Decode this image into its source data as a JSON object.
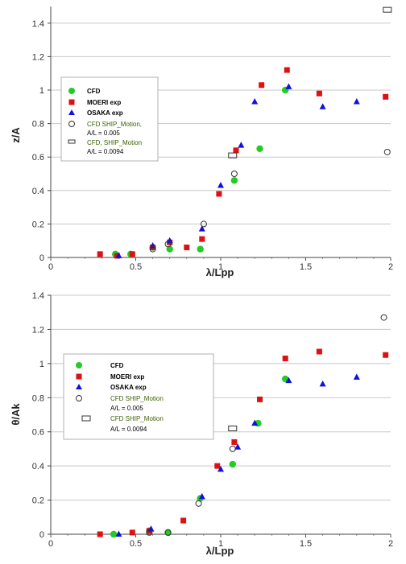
{
  "chart_data": [
    {
      "type": "scatter",
      "title": "",
      "xlabel": "λ/Lpp",
      "ylabel": "z/A",
      "xlim": [
        0,
        2
      ],
      "ylim": [
        0,
        1.5
      ],
      "xticks": [
        "0",
        "0.5",
        "1",
        "1.5",
        "2"
      ],
      "yticks": [
        "0",
        "0.2",
        "0.4",
        "0.6",
        "0.8",
        "1",
        "1.2",
        "1.4"
      ],
      "grid": "horizontal",
      "legend_position": "upper-left",
      "series": [
        {
          "name": "CFD",
          "marker": "filled-circle",
          "color": "#22cc22",
          "x": [
            0.38,
            0.47,
            0.6,
            0.7,
            0.88,
            1.08,
            1.23,
            1.38
          ],
          "y": [
            0.02,
            0.02,
            0.06,
            0.05,
            0.05,
            0.46,
            0.65,
            1.0
          ]
        },
        {
          "name": "MOERI exp",
          "marker": "filled-square",
          "color": "#dd1111",
          "x": [
            0.29,
            0.39,
            0.48,
            0.6,
            0.7,
            0.8,
            0.89,
            0.99,
            1.09,
            1.24,
            1.39,
            1.58,
            1.97
          ],
          "y": [
            0.02,
            0.01,
            0.02,
            0.06,
            0.09,
            0.06,
            0.11,
            0.38,
            0.64,
            1.03,
            1.12,
            0.98,
            0.96
          ]
        },
        {
          "name": "OSAKA exp",
          "marker": "filled-triangle",
          "color": "#1111dd",
          "x": [
            0.4,
            0.6,
            0.7,
            0.89,
            1.0,
            1.12,
            1.2,
            1.4,
            1.6,
            1.8
          ],
          "y": [
            0.01,
            0.07,
            0.1,
            0.17,
            0.43,
            0.67,
            0.93,
            1.02,
            0.9,
            0.93
          ]
        },
        {
          "name": "CFD SHIP_Motion, A/L = 0.005",
          "marker": "open-circle",
          "color": "#333333",
          "x": [
            0.6,
            0.69,
            0.9,
            1.08,
            1.98
          ],
          "y": [
            0.05,
            0.08,
            0.2,
            0.5,
            0.63
          ]
        },
        {
          "name": "CFD, SHIP_Motion A/L = 0.0094",
          "marker": "open-rect",
          "color": "#333333",
          "x": [
            1.07,
            1.98
          ],
          "y": [
            0.61,
            1.48
          ]
        }
      ],
      "legend": {
        "cfd": "CFD",
        "moeri": "MOERI exp",
        "osaka": "OSAKA exp",
        "ship1_line1": "CFD SHIP_Motion,",
        "ship1_line2": "A/L = 0.005",
        "ship2_line1": "CFD, SHIP_Motion",
        "ship2_line2": "A/L = 0.0094"
      }
    },
    {
      "type": "scatter",
      "title": "",
      "xlabel": "λ/Lpp",
      "ylabel": "θ/Ak",
      "xlim": [
        0,
        2
      ],
      "ylim": [
        0,
        1.4
      ],
      "xticks": [
        "0",
        "0.5",
        "1",
        "1.5",
        "2"
      ],
      "yticks": [
        "0",
        "0.2",
        "0.4",
        "0.6",
        "0.8",
        "1",
        "1.2",
        "1.4"
      ],
      "grid": "horizontal",
      "legend_position": "upper-left",
      "series": [
        {
          "name": "CFD",
          "marker": "filled-circle",
          "color": "#22cc22",
          "x": [
            0.37,
            0.58,
            0.69,
            0.88,
            1.07,
            1.22,
            1.38
          ],
          "y": [
            0.0,
            0.02,
            0.01,
            0.21,
            0.41,
            0.65,
            0.91
          ]
        },
        {
          "name": "MOERI exp",
          "marker": "filled-square",
          "color": "#dd1111",
          "x": [
            0.29,
            0.48,
            0.58,
            0.78,
            0.98,
            1.08,
            1.23,
            1.38,
            1.58,
            1.97
          ],
          "y": [
            0.0,
            0.01,
            0.02,
            0.08,
            0.4,
            0.54,
            0.79,
            1.03,
            1.07,
            1.05
          ]
        },
        {
          "name": "OSAKA exp",
          "marker": "filled-triangle",
          "color": "#1111dd",
          "x": [
            0.4,
            0.59,
            0.89,
            1.0,
            1.1,
            1.2,
            1.4,
            1.6,
            1.8
          ],
          "y": [
            0.0,
            0.03,
            0.22,
            0.38,
            0.51,
            0.65,
            0.9,
            0.88,
            0.92
          ]
        },
        {
          "name": "CFD SHIP_Motion A/L = 0.005",
          "marker": "open-circle",
          "color": "#333333",
          "x": [
            0.58,
            0.69,
            0.87,
            1.07,
            1.96
          ],
          "y": [
            0.01,
            0.01,
            0.18,
            0.5,
            1.27
          ]
        },
        {
          "name": "CFD SHIP_Motion A/L = 0.0094",
          "marker": "open-rect",
          "color": "#333333",
          "x": [
            1.07
          ],
          "y": [
            0.62
          ]
        }
      ],
      "legend": {
        "cfd": "CFD",
        "moeri": "MOERI exp",
        "osaka": "OSAKA exp",
        "ship1_line1": "CFD SHIP_Motion",
        "ship1_line2": "A/L = 0.005",
        "ship2_line1": "CFD SHIP_Motion",
        "ship2_line2": "A/L = 0.0094"
      }
    }
  ]
}
